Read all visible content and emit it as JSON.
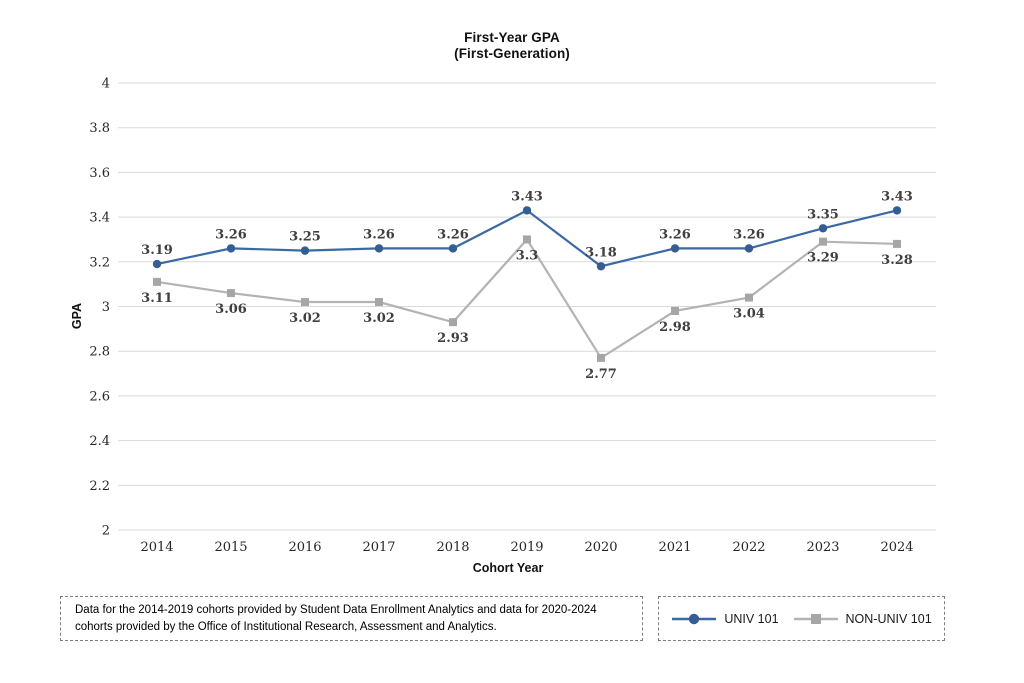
{
  "title": {
    "line1": "First-Year GPA",
    "line2": "(First-Generation)"
  },
  "chart_data": {
    "type": "line",
    "title": "First-Year GPA (First-Generation)",
    "xlabel": "Cohort Year",
    "ylabel": "GPA",
    "categories": [
      "2014",
      "2015",
      "2016",
      "2017",
      "2018",
      "2019",
      "2020",
      "2021",
      "2022",
      "2023",
      "2024"
    ],
    "series": [
      {
        "name": "UNIV 101",
        "color": "#3a69a5",
        "marker_color": "#335d93",
        "marker": "circle",
        "label_position": "above",
        "values": [
          3.19,
          3.26,
          3.25,
          3.26,
          3.26,
          3.43,
          3.18,
          3.26,
          3.26,
          3.35,
          3.43
        ]
      },
      {
        "name": "NON-UNIV 101",
        "color": "#b3b3b3",
        "marker_color": "#a6a6a6",
        "marker": "square",
        "label_position": "below",
        "values": [
          3.11,
          3.06,
          3.02,
          3.02,
          2.93,
          3.3,
          2.77,
          2.98,
          3.04,
          3.29,
          3.28
        ]
      }
    ],
    "ylim": [
      2,
      4
    ],
    "ytick_step": 0.2,
    "grid": true,
    "gridline_color": "#d9d9d9",
    "legend_position": "bottom-right"
  },
  "footnote": {
    "text": "Data for the 2014-2019 cohorts provided by Student Data Enrollment Analytics and data for 2020-2024 cohorts provided by the Office of Institutional Research, Assessment and Analytics."
  }
}
